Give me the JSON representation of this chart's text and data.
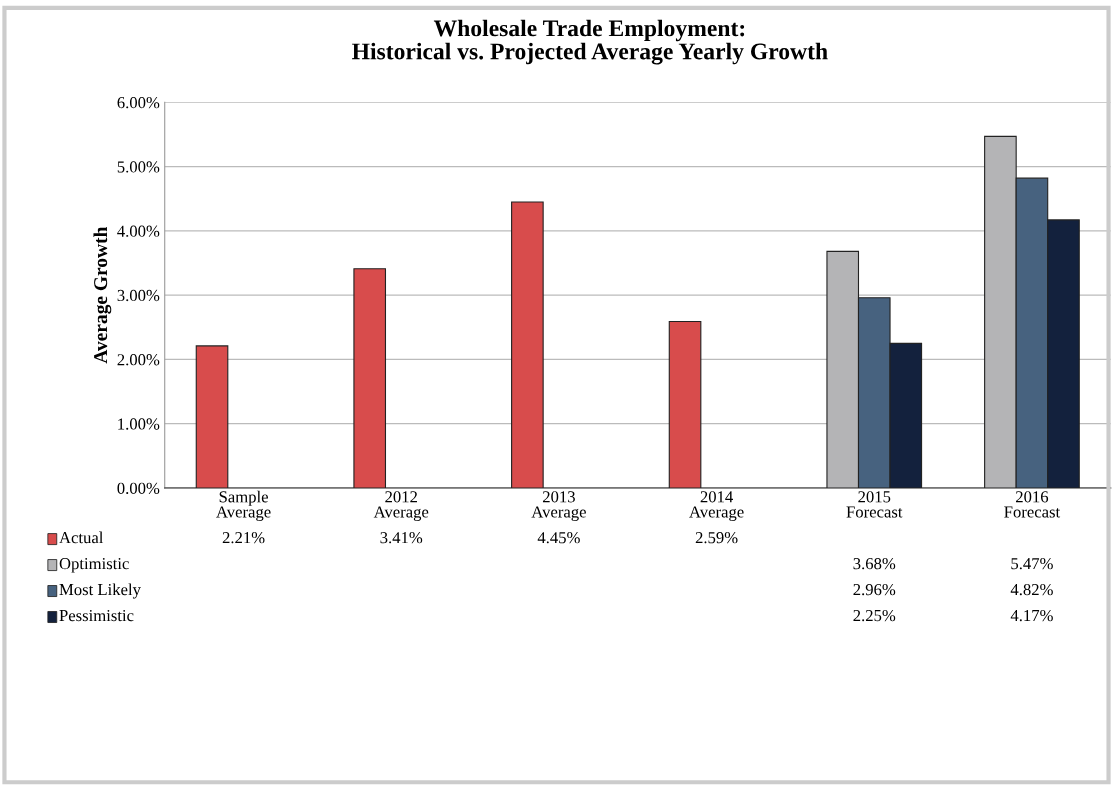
{
  "chart_data": {
    "type": "bar",
    "title": "Wholesale Trade Employment:\nHistorical vs. Projected Average Yearly Growth",
    "ylabel": "Average Growth",
    "categories": [
      "Sample\nAverage",
      "2012\nAverage",
      "2013\nAverage",
      "2014\nAverage",
      "2015\nForecast",
      "2016\nForecast"
    ],
    "series": [
      {
        "name": "Actual",
        "color": "#d84c4c",
        "values": [
          2.21,
          3.41,
          4.45,
          2.59,
          null,
          null
        ],
        "value_labels": [
          "2.21%",
          "3.41%",
          "4.45%",
          "2.59%",
          null,
          null
        ]
      },
      {
        "name": "Optimistic",
        "color": "#b4b4b6",
        "values": [
          null,
          null,
          null,
          null,
          3.68,
          5.47
        ],
        "value_labels": [
          null,
          null,
          null,
          null,
          "3.68%",
          "5.47%"
        ]
      },
      {
        "name": "Most Likely",
        "color": "#47627f",
        "values": [
          null,
          null,
          null,
          null,
          2.96,
          4.82
        ],
        "value_labels": [
          null,
          null,
          null,
          null,
          "2.96%",
          "4.82%"
        ]
      },
      {
        "name": "Pessimistic",
        "color": "#13213d",
        "values": [
          null,
          null,
          null,
          null,
          2.25,
          4.17
        ],
        "value_labels": [
          null,
          null,
          null,
          null,
          "2.25%",
          "4.17%"
        ]
      }
    ],
    "ylim": [
      0,
      6
    ],
    "yticks": [
      {
        "value": 0,
        "label": "0.00%"
      },
      {
        "value": 1,
        "label": "1.00%"
      },
      {
        "value": 2,
        "label": "2.00%"
      },
      {
        "value": 3,
        "label": "3.00%"
      },
      {
        "value": 4,
        "label": "4.00%"
      },
      {
        "value": 5,
        "label": "5.00%"
      },
      {
        "value": 6,
        "label": "6.00%"
      }
    ],
    "grid": "y",
    "legend": "bottom left"
  }
}
